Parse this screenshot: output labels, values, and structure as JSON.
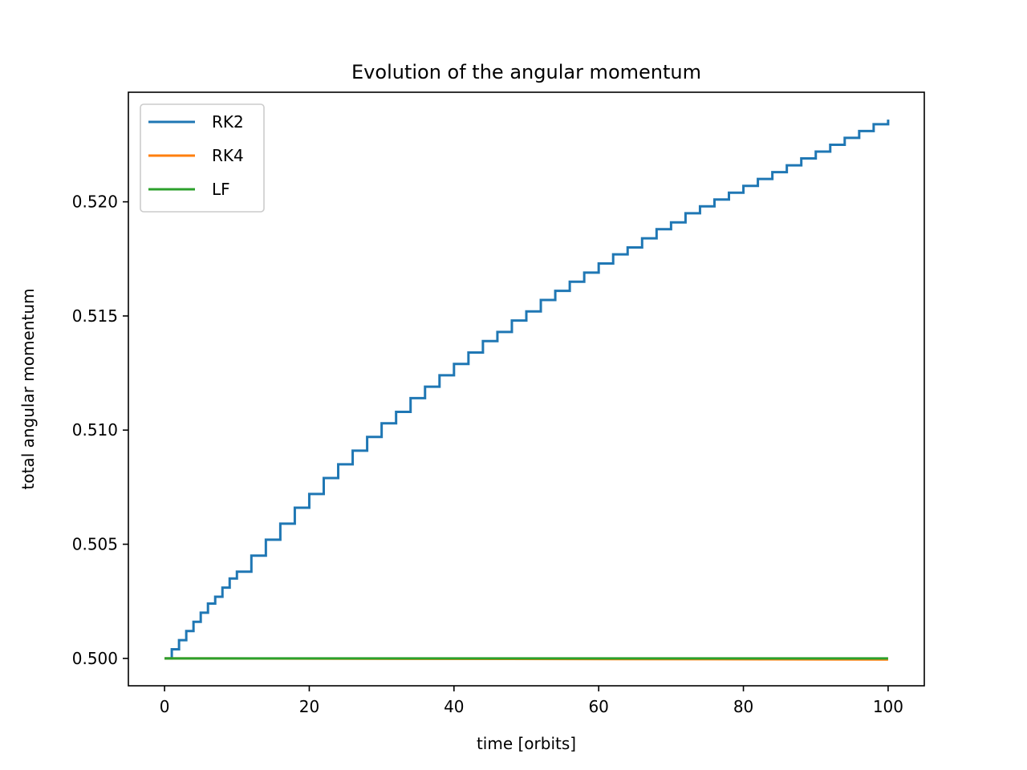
{
  "chart_data": {
    "type": "line",
    "title": "Evolution of the angular momentum",
    "xlabel": "time [orbits]",
    "ylabel": "total angular momentum",
    "xlim": [
      -5,
      105
    ],
    "ylim": [
      0.4988,
      0.5248
    ],
    "xticks": [
      0,
      20,
      40,
      60,
      80,
      100
    ],
    "yticks": [
      0.5,
      0.505,
      0.51,
      0.515,
      0.52
    ],
    "ytick_labels": [
      "0.500",
      "0.505",
      "0.510",
      "0.515",
      "0.520"
    ],
    "grid": false,
    "legend_position": "top-left",
    "series": [
      {
        "name": "RK2",
        "color": "#1f77b4",
        "style": "staircase",
        "x": [
          0,
          1,
          2,
          3,
          4,
          5,
          6,
          7,
          8,
          9,
          10,
          12,
          14,
          16,
          18,
          20,
          22,
          24,
          26,
          28,
          30,
          32,
          34,
          36,
          38,
          40,
          42,
          44,
          46,
          48,
          50,
          52,
          54,
          56,
          58,
          60,
          62,
          64,
          66,
          68,
          70,
          72,
          74,
          76,
          78,
          80,
          82,
          84,
          86,
          88,
          90,
          92,
          94,
          96,
          98,
          100
        ],
        "y": [
          0.5,
          0.5004,
          0.5008,
          0.5012,
          0.5016,
          0.502,
          0.5024,
          0.5027,
          0.5031,
          0.5035,
          0.5038,
          0.5045,
          0.5052,
          0.5059,
          0.5066,
          0.5072,
          0.5079,
          0.5085,
          0.5091,
          0.5097,
          0.5103,
          0.5108,
          0.5114,
          0.5119,
          0.5124,
          0.5129,
          0.5134,
          0.5139,
          0.5143,
          0.5148,
          0.5152,
          0.5157,
          0.5161,
          0.5165,
          0.5169,
          0.5173,
          0.5177,
          0.518,
          0.5184,
          0.5188,
          0.5191,
          0.5195,
          0.5198,
          0.5201,
          0.5204,
          0.5207,
          0.521,
          0.5213,
          0.5216,
          0.5219,
          0.5222,
          0.5225,
          0.5228,
          0.5231,
          0.5234,
          0.5236
        ]
      },
      {
        "name": "RK4",
        "color": "#ff7f0e",
        "style": "line",
        "x": [
          0,
          100
        ],
        "y": [
          0.5,
          0.49995
        ]
      },
      {
        "name": "LF",
        "color": "#2ca02c",
        "style": "line",
        "x": [
          0,
          100
        ],
        "y": [
          0.5,
          0.5
        ]
      }
    ]
  }
}
